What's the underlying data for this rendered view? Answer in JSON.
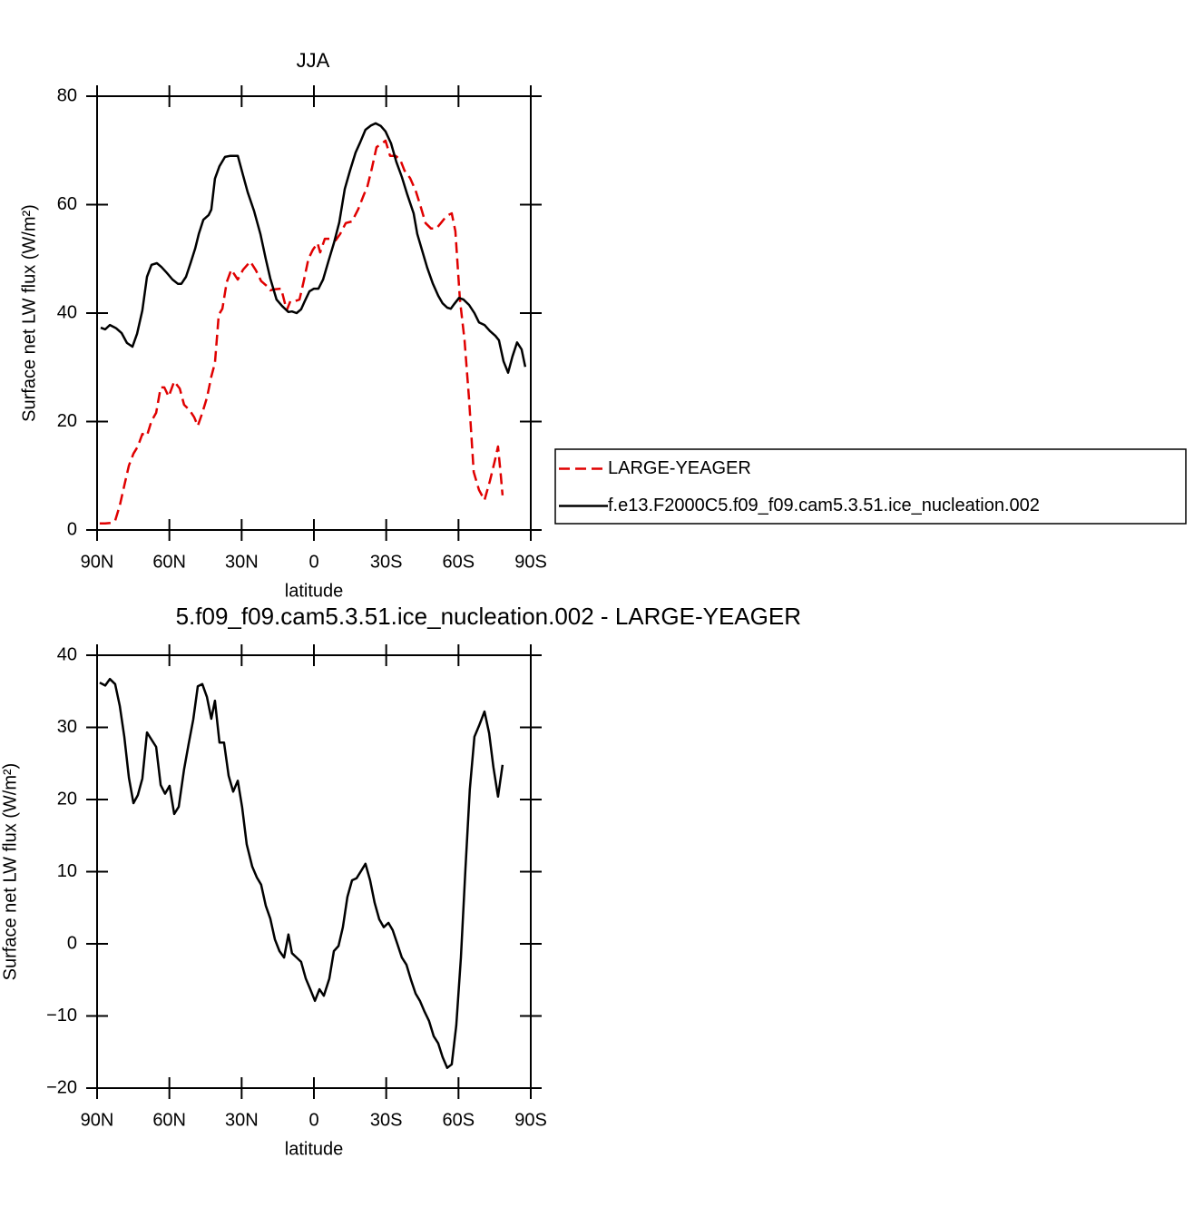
{
  "chart_data": [
    {
      "type": "line",
      "title": "JJA",
      "xlabel": "latitude",
      "ylabel": "Surface net LW flux (W/m²)",
      "xlim": [
        90,
        -90
      ],
      "ylim": [
        0,
        80
      ],
      "xticks": [
        {
          "value": 90,
          "label": "90N"
        },
        {
          "value": 60,
          "label": "60N"
        },
        {
          "value": 30,
          "label": "30N"
        },
        0,
        {
          "value": -30,
          "label": "30S"
        },
        {
          "value": -60,
          "label": "60S"
        },
        {
          "value": -90,
          "label": "90S"
        }
      ],
      "yticks": [
        0,
        20,
        40,
        60,
        80
      ],
      "legend": "right",
      "series": [
        {
          "name": "LARGE-YEAGER",
          "color": "#e00000",
          "line_style": "dashed",
          "x": [
            88.9,
            86.6,
            84.4,
            82.5,
            80.6,
            78.7,
            76.8,
            74.9,
            73.1,
            71.2,
            69.3,
            67.4,
            65.5,
            63.6,
            62.1,
            60.3,
            58.0,
            55.7,
            53.9,
            51.6,
            49.7,
            48.2,
            46.3,
            44.4,
            42.6,
            41.1,
            39.5,
            38.0,
            36.2,
            34.3,
            31.6,
            29.4,
            26.4,
            24.1,
            21.9,
            19.6,
            18.1,
            16.2,
            13.6,
            11.3,
            9.8,
            7.9,
            6.0,
            4.2,
            2.3,
            0.4,
            -1.5,
            -2.6,
            -4.5,
            -6.8,
            -9.0,
            -10.9,
            -13.2,
            -15.8,
            -18.4,
            -20.7,
            -22.2,
            -24.1,
            -26.0,
            -28.2,
            -29.7,
            -31.6,
            -33.9,
            -35.8,
            -37.6,
            -39.9,
            -42.2,
            -44.0,
            -46.3,
            -48.6,
            -50.8,
            -52.7,
            -55.0,
            -57.2,
            -58.7,
            -60.6,
            -62.5,
            -64.4,
            -66.3,
            -68.5,
            -70.8,
            -73.0,
            -75.3,
            -76.4,
            -77.5,
            -78.3
          ],
          "values": [
            1.2,
            1.2,
            1.3,
            1.7,
            4.5,
            8.2,
            11.9,
            14.1,
            15.4,
            17.7,
            17.4,
            20.1,
            21.6,
            26.3,
            26.3,
            24.6,
            27.4,
            26.1,
            23.1,
            22.1,
            20.8,
            19.2,
            21.6,
            24.4,
            28.3,
            30.8,
            39.7,
            40.8,
            45.7,
            48.0,
            46.2,
            48.0,
            49.5,
            47.9,
            45.9,
            45.0,
            44.2,
            44.4,
            44.5,
            40.5,
            42.2,
            42.2,
            42.5,
            45.9,
            50.0,
            51.7,
            52.9,
            51.2,
            53.7,
            53.7,
            53.4,
            54.6,
            56.6,
            56.9,
            59.2,
            61.8,
            63.4,
            66.8,
            70.6,
            71.3,
            71.8,
            69.0,
            69.0,
            68.3,
            66.3,
            64.9,
            62.6,
            60.1,
            56.6,
            55.6,
            55.6,
            56.6,
            57.9,
            58.4,
            55.1,
            42.5,
            35.0,
            24.1,
            10.7,
            7.4,
            5.5,
            9.0,
            13.2,
            15.4,
            10.4,
            6.4
          ]
        },
        {
          "name": "f.e13.F2000C5.f09_f09.cam5.3.51.ice_nucleation.002",
          "color": "#000000",
          "line_style": "solid",
          "x": [
            88.5,
            86.6,
            84.7,
            82.1,
            79.8,
            77.6,
            75.3,
            73.4,
            71.2,
            69.3,
            67.4,
            65.2,
            63.3,
            61.0,
            58.7,
            56.5,
            55.0,
            53.1,
            51.2,
            49.3,
            47.8,
            45.9,
            43.7,
            42.6,
            41.1,
            39.2,
            36.9,
            34.7,
            31.6,
            29.4,
            27.5,
            24.9,
            22.2,
            20.0,
            18.1,
            15.5,
            13.2,
            10.6,
            9.1,
            7.2,
            5.3,
            3.8,
            1.9,
            0,
            -1.9,
            -3.8,
            -6.0,
            -8.3,
            -10.5,
            -12.8,
            -15.0,
            -17.3,
            -19.2,
            -21.4,
            -23.7,
            -25.6,
            -27.8,
            -29.7,
            -32.0,
            -34.2,
            -36.5,
            -38.8,
            -41.4,
            -42.9,
            -44.8,
            -47.0,
            -49.3,
            -51.6,
            -53.4,
            -55.3,
            -56.8,
            -58.3,
            -60.2,
            -62.1,
            -64.4,
            -66.6,
            -68.5,
            -70.8,
            -73.0,
            -75.3,
            -76.8,
            -78.7,
            -80.6,
            -82.4,
            -84.3,
            -86.2,
            -87.7
          ],
          "values": [
            37.3,
            37.0,
            37.8,
            37.2,
            36.3,
            34.5,
            33.8,
            36.2,
            40.5,
            46.7,
            48.9,
            49.2,
            48.5,
            47.4,
            46.2,
            45.4,
            45.4,
            46.7,
            49.2,
            51.9,
            54.6,
            57.2,
            58.1,
            59.1,
            64.8,
            67.1,
            68.8,
            69.0,
            69.0,
            65.4,
            62.3,
            58.9,
            54.6,
            50.0,
            46.4,
            42.5,
            41.3,
            40.2,
            40.3,
            40.0,
            40.7,
            42.2,
            44.0,
            44.5,
            44.5,
            46.2,
            49.5,
            52.9,
            56.7,
            62.9,
            66.3,
            69.6,
            71.5,
            73.8,
            74.6,
            75.0,
            74.5,
            73.5,
            71.3,
            67.9,
            65.1,
            61.8,
            58.4,
            54.6,
            51.7,
            48.4,
            45.5,
            43.2,
            41.8,
            41.0,
            40.8,
            41.7,
            42.8,
            42.5,
            41.5,
            40.0,
            38.3,
            37.8,
            36.7,
            35.8,
            35.0,
            31.1,
            29.0,
            32.0,
            34.6,
            33.3,
            30.1
          ]
        }
      ]
    },
    {
      "type": "line",
      "title": "5.f09_f09.cam5.3.51.ice_nucleation.002 - LARGE-YEAGER",
      "xlabel": "latitude",
      "ylabel": "Surface net LW flux (W/m²)",
      "xlim": [
        90,
        -90
      ],
      "ylim": [
        -20,
        40
      ],
      "xticks": [
        {
          "value": 90,
          "label": "90N"
        },
        {
          "value": 60,
          "label": "60N"
        },
        {
          "value": 30,
          "label": "30N"
        },
        0,
        {
          "value": -30,
          "label": "30S"
        },
        {
          "value": -60,
          "label": "60S"
        },
        {
          "value": -90,
          "label": "90S"
        }
      ],
      "yticks": [
        {
          "value": -20,
          "label": "−20"
        },
        {
          "value": -10,
          "label": "−10"
        },
        0,
        10,
        20,
        30,
        40
      ],
      "series": [
        {
          "color": "#000000",
          "line_style": "solid",
          "x": [
            88.9,
            86.6,
            84.7,
            82.5,
            80.6,
            78.7,
            76.8,
            74.9,
            73.1,
            71.2,
            69.3,
            67.4,
            65.5,
            63.6,
            61.8,
            59.9,
            58.0,
            56.1,
            53.9,
            52.0,
            50.1,
            48.2,
            46.3,
            44.4,
            42.6,
            41.1,
            39.2,
            37.3,
            35.4,
            33.5,
            31.6,
            29.8,
            27.9,
            25.6,
            23.7,
            21.9,
            20.0,
            18.1,
            16.2,
            14.3,
            12.4,
            10.6,
            9.1,
            7.2,
            5.3,
            3.4,
            1.5,
            -0.4,
            -2.3,
            -4.1,
            -6.4,
            -8.3,
            -10.2,
            -12.0,
            -13.9,
            -15.8,
            -17.7,
            -19.6,
            -21.4,
            -23.3,
            -25.2,
            -27.1,
            -29.0,
            -30.9,
            -32.7,
            -34.6,
            -36.5,
            -38.4,
            -40.3,
            -42.2,
            -44.0,
            -45.9,
            -47.8,
            -49.7,
            -51.6,
            -53.4,
            -55.3,
            -57.2,
            -59.1,
            -61.0,
            -62.9,
            -64.7,
            -66.6,
            -68.5,
            -70.8,
            -72.7,
            -74.5,
            -76.4,
            -78.3
          ],
          "values": [
            36.2,
            35.8,
            36.7,
            36.0,
            33.0,
            28.7,
            23.0,
            19.5,
            20.6,
            22.9,
            29.3,
            28.3,
            27.3,
            22.0,
            20.8,
            21.9,
            18.0,
            19.0,
            24.2,
            27.7,
            31.1,
            35.7,
            36.0,
            34.2,
            31.2,
            33.7,
            27.9,
            27.9,
            23.3,
            21.1,
            22.6,
            18.9,
            13.8,
            10.7,
            9.2,
            8.2,
            5.3,
            3.5,
            0.6,
            -1.0,
            -1.9,
            1.3,
            -1.3,
            -1.9,
            -2.5,
            -4.8,
            -6.3,
            -7.9,
            -6.3,
            -7.2,
            -4.8,
            -1.0,
            -0.3,
            2.3,
            6.5,
            8.8,
            9.1,
            10.1,
            11.1,
            8.8,
            5.7,
            3.4,
            2.3,
            2.9,
            1.9,
            0.0,
            -1.9,
            -2.9,
            -5.0,
            -6.9,
            -7.9,
            -9.4,
            -10.7,
            -12.8,
            -13.8,
            -15.7,
            -17.2,
            -16.7,
            -11.3,
            -1.9,
            10.4,
            21.4,
            28.7,
            30.2,
            32.2,
            29.2,
            24.5,
            20.4,
            24.8
          ]
        }
      ]
    }
  ]
}
